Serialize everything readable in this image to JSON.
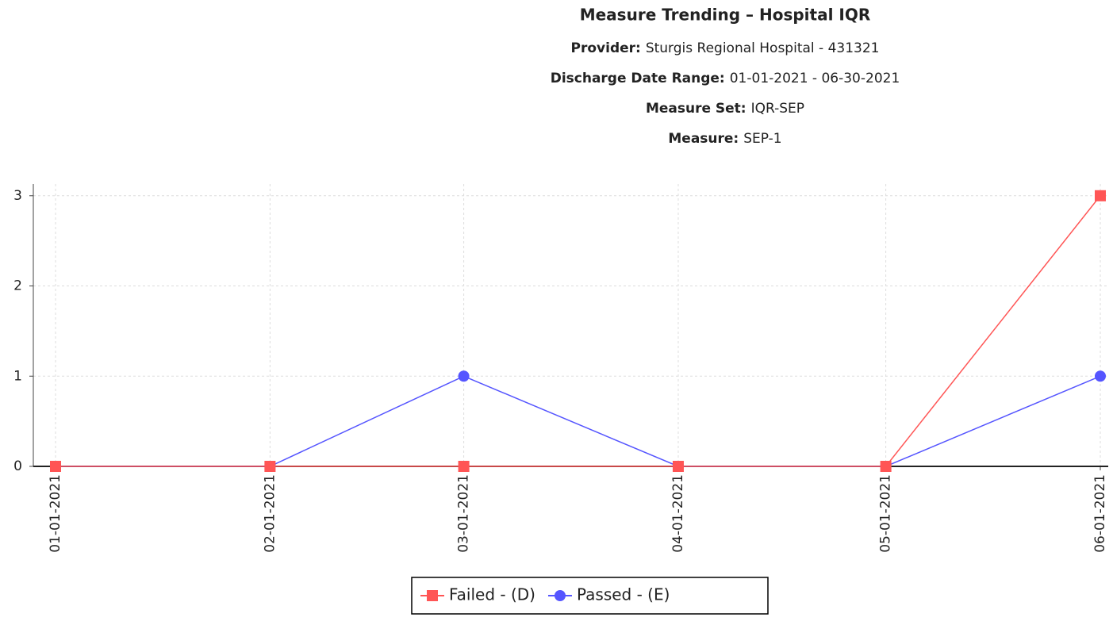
{
  "chart_data": {
    "type": "line",
    "title": "Measure Trending – Hospital IQR",
    "subtitles": [
      {
        "label": "Provider:",
        "value": "Sturgis Regional Hospital - 431321"
      },
      {
        "label": "Discharge Date Range:",
        "value": "01-01-2021 - 06-30-2021"
      },
      {
        "label": "Measure Set:",
        "value": "IQR-SEP"
      },
      {
        "label": "Measure:",
        "value": "SEP-1"
      }
    ],
    "x": [
      "01-01-2021",
      "02-01-2021",
      "03-01-2021",
      "04-01-2021",
      "05-01-2021",
      "06-01-2021"
    ],
    "series": [
      {
        "name": "Passed - (E)",
        "color": "#5555ff",
        "marker": "circle",
        "values": [
          0,
          0,
          1,
          0,
          0,
          1
        ]
      },
      {
        "name": "Failed - (D)",
        "color": "#ff5555",
        "marker": "square",
        "values": [
          0,
          0,
          0,
          0,
          0,
          3
        ]
      }
    ],
    "legend_order": [
      1,
      0
    ],
    "ylim": [
      0,
      3.13
    ],
    "yticks": [
      0,
      1,
      2,
      3
    ],
    "grid": true,
    "legend": "bottom"
  }
}
